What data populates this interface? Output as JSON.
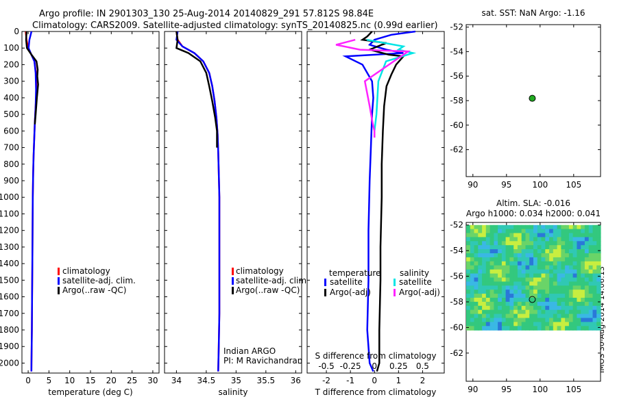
{
  "header": {
    "line1": "Argo profile: IN 2901303_130 25-Aug-2014 20140829_291 57.812S 98.84E",
    "line2": "Climatology: CARS2009. Satellite-adjusted climatology: synTS_20140825.nc (0.99d earlier)"
  },
  "side_label": "IMOS 30-Aug-2014 14:06:13",
  "colors": {
    "climatology": "#ff0000",
    "satellite": "#0000ff",
    "argo": "#000000",
    "sal_satellite": "#00e5e5",
    "sal_argo": "#ff22ff",
    "argo_dot": "#22aa22"
  },
  "chart_data": [
    {
      "type": "line",
      "id": "temperature",
      "xlabel": "temperature (deg C)",
      "xticks": [
        0,
        5,
        10,
        15,
        20,
        25,
        30
      ],
      "xlim": [
        -1.5,
        31.5
      ],
      "ylim": [
        2060,
        0
      ],
      "yticks": [
        0,
        100,
        200,
        300,
        400,
        500,
        600,
        700,
        800,
        900,
        1000,
        1100,
        1200,
        1300,
        1400,
        1500,
        1600,
        1700,
        1800,
        1900,
        2000
      ],
      "legend": [
        "climatology",
        "satellite-adj. clim.",
        "Argo(..raw -QC)"
      ],
      "series": [
        {
          "name": "climatology",
          "color": "#ff0000",
          "x": [
            -0.6,
            -0.4,
            0.0,
            0.6,
            1.5,
            1.9,
            2.0,
            1.8,
            1.6,
            1.45,
            1.3,
            1.2,
            1.1,
            1.05,
            1.0,
            0.95,
            0.9,
            0.85,
            0.8,
            0.78
          ],
          "y": [
            0,
            50,
            100,
            130,
            180,
            250,
            350,
            450,
            550,
            650,
            750,
            850,
            1000,
            1200,
            1400,
            1600,
            1800,
            1900,
            2000,
            2050
          ]
        },
        {
          "name": "satellite-adj. clim.",
          "color": "#0000ff",
          "x": [
            0.8,
            0.3,
            0.1,
            0.6,
            1.5,
            1.8,
            1.9,
            1.8,
            1.6,
            1.45,
            1.3,
            1.2,
            1.1,
            1.05,
            1.0,
            0.95,
            0.9,
            0.85,
            0.8,
            0.78
          ],
          "y": [
            0,
            50,
            100,
            130,
            180,
            250,
            350,
            450,
            550,
            650,
            750,
            850,
            1000,
            1200,
            1400,
            1600,
            1800,
            1900,
            2000,
            2050
          ]
        },
        {
          "name": "Argo(..raw -QC)",
          "color": "#000000",
          "x": [
            -0.4,
            -0.5,
            -0.3,
            0.8,
            2.0,
            2.3,
            2.2,
            2.4,
            2.1,
            1.8,
            1.6
          ],
          "y": [
            0,
            50,
            100,
            140,
            180,
            230,
            270,
            320,
            400,
            500,
            560
          ]
        }
      ]
    },
    {
      "type": "line",
      "id": "salinity",
      "xlabel": "salinity",
      "xticks": [
        34,
        34.5,
        35,
        35.5,
        36
      ],
      "xtick_labels": [
        "34",
        "34.5",
        "35",
        "35.5",
        "36"
      ],
      "xlim": [
        33.8,
        36.1
      ],
      "ylim": [
        2060,
        0
      ],
      "legend": [
        "climatology",
        "satellite-adj. clim.",
        "Argo(..raw -QC)"
      ],
      "annotation": [
        "Indian ARGO",
        "PI: M Ravichandran"
      ],
      "series": [
        {
          "name": "climatology",
          "color": "#ff0000",
          "x": [
            34.0,
            34.02,
            34.1,
            34.3,
            34.45,
            34.55,
            34.6,
            34.64,
            34.67,
            34.69,
            34.7,
            34.71,
            34.72,
            34.72,
            34.72,
            34.72,
            34.71,
            34.7
          ],
          "y": [
            0,
            50,
            90,
            130,
            180,
            250,
            330,
            420,
            520,
            620,
            720,
            850,
            1000,
            1200,
            1400,
            1700,
            1900,
            2050
          ]
        },
        {
          "name": "satellite-adj. clim.",
          "color": "#0000ff",
          "x": [
            34.02,
            34.0,
            34.1,
            34.3,
            34.45,
            34.55,
            34.6,
            34.64,
            34.67,
            34.69,
            34.7,
            34.71,
            34.72,
            34.72,
            34.72,
            34.72,
            34.71,
            34.7
          ],
          "y": [
            0,
            50,
            90,
            130,
            180,
            250,
            330,
            420,
            520,
            620,
            720,
            850,
            1000,
            1200,
            1400,
            1700,
            1900,
            2050
          ]
        },
        {
          "name": "Argo(..raw -QC)",
          "color": "#000000",
          "x": [
            34.0,
            34.02,
            34.0,
            34.2,
            34.4,
            34.5,
            34.55,
            34.6,
            34.65,
            34.68,
            34.68
          ],
          "y": [
            0,
            50,
            100,
            130,
            180,
            250,
            330,
            420,
            520,
            600,
            700
          ]
        }
      ]
    },
    {
      "type": "line",
      "id": "difference",
      "xlabel": "T difference from climatology",
      "xticks": [
        -2,
        -1,
        0,
        1,
        2
      ],
      "xlim": [
        -2.8,
        2.9
      ],
      "ylim": [
        2060,
        0
      ],
      "top_axis_label": "S difference from climatology",
      "top_ticks": [
        -0.5,
        -0.25,
        0,
        0.25,
        0.5
      ],
      "top_tick_labels": [
        "-0.5",
        "-0.25",
        "0",
        "0.25",
        "0.5"
      ],
      "legend_headers": [
        "temperature",
        "salinity"
      ],
      "legend": [
        "satellite",
        "Argo(-adj)",
        "satellite",
        "Argo(-adj)"
      ],
      "series": [
        {
          "name": "satellite",
          "group": "temperature",
          "color": "#0000ff",
          "x": [
            1.7,
            0.7,
            0.0,
            -0.2,
            0.5,
            1.2,
            -1.2,
            -0.5,
            -0.1,
            -0.05,
            -0.1,
            -0.15,
            -0.2,
            -0.25,
            -0.25,
            -0.3,
            -0.2,
            -0.05
          ],
          "y": [
            0,
            20,
            50,
            80,
            110,
            130,
            150,
            200,
            300,
            400,
            500,
            700,
            900,
            1200,
            1500,
            1800,
            2000,
            2050
          ]
        },
        {
          "name": "Argo(-adj)",
          "group": "temperature",
          "color": "#000000",
          "x": [
            -0.1,
            -0.3,
            -0.5,
            0.5,
            0.3,
            -0.2,
            0.6,
            1.2,
            0.9,
            0.7,
            0.5,
            0.4,
            0.35,
            0.3,
            0.3,
            0.25,
            0.25,
            0.2,
            0.2,
            0.1
          ],
          "y": [
            0,
            30,
            50,
            70,
            80,
            110,
            140,
            150,
            200,
            260,
            330,
            450,
            600,
            800,
            1000,
            1300,
            1500,
            1800,
            2000,
            2050
          ]
        },
        {
          "name": "satellite",
          "group": "salinity",
          "color": "#00e5e5",
          "x": [
            -0.08,
            0.3,
            0.25,
            0.4,
            0.12,
            0.04,
            0.02,
            0.0,
            0.0,
            0.0
          ],
          "y": [
            50,
            90,
            110,
            130,
            180,
            300,
            500,
            600,
            620,
            640
          ]
        },
        {
          "name": "Argo(-adj)",
          "group": "salinity",
          "color": "#ff22ff",
          "x": [
            -0.2,
            -0.4,
            -0.15,
            0.35,
            0.2,
            -0.1,
            -0.05,
            -0.02,
            0.0,
            0.0
          ],
          "y": [
            50,
            80,
            110,
            120,
            180,
            300,
            450,
            550,
            600,
            640
          ]
        }
      ]
    },
    {
      "type": "scatter",
      "id": "sst_map",
      "title": "sat. SST: NaN Argo: -1.16",
      "xticks": [
        90,
        95,
        100,
        105
      ],
      "yticks": [
        -52,
        -54,
        -56,
        -58,
        -60,
        -62
      ],
      "xlim": [
        89,
        109
      ],
      "ylim": [
        -51.8,
        -64.2
      ],
      "point": {
        "lon": 98.84,
        "lat": -57.812
      }
    },
    {
      "type": "heatmap",
      "id": "sla_map",
      "title": [
        "Altim. SLA: -0.016",
        "Argo h1000: 0.034 h2000: 0.041"
      ],
      "xticks": [
        90,
        95,
        100,
        105
      ],
      "yticks": [
        -52,
        -54,
        -56,
        -58,
        -60,
        -62
      ],
      "xlim": [
        89,
        109
      ],
      "ylim": [
        -51.8,
        -64.2
      ],
      "field_extent": {
        "lon": [
          89,
          109
        ],
        "lat": [
          -52,
          -60.2
        ]
      },
      "point": {
        "lon": 98.84,
        "lat": -57.812
      }
    }
  ]
}
